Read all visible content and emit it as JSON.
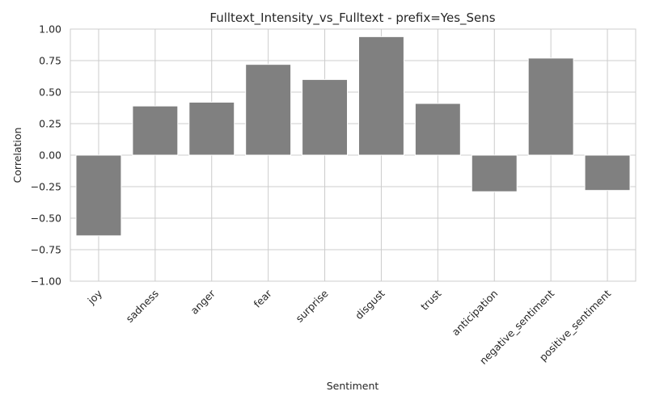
{
  "chart_data": {
    "type": "bar",
    "title": "Fulltext_Intensity_vs_Fulltext - prefix=Yes_Sens",
    "xlabel": "Sentiment",
    "ylabel": "Correlation",
    "categories": [
      "joy",
      "sadness",
      "anger",
      "fear",
      "surprise",
      "disgust",
      "trust",
      "anticipation",
      "negative_sentiment",
      "positive_sentiment"
    ],
    "values": [
      -0.64,
      0.39,
      0.42,
      0.72,
      0.6,
      0.94,
      0.41,
      -0.29,
      0.77,
      -0.28
    ],
    "ylim": [
      -1.0,
      1.0
    ],
    "yticks": [
      -1.0,
      -0.75,
      -0.5,
      -0.25,
      0.0,
      0.25,
      0.5,
      0.75,
      1.0
    ],
    "ytick_labels": [
      "−1.00",
      "−0.75",
      "−0.50",
      "−0.25",
      "0.00",
      "0.25",
      "0.50",
      "0.75",
      "1.00"
    ],
    "bar_color": "#808080",
    "grid": true,
    "grid_color": "#cccccc"
  }
}
